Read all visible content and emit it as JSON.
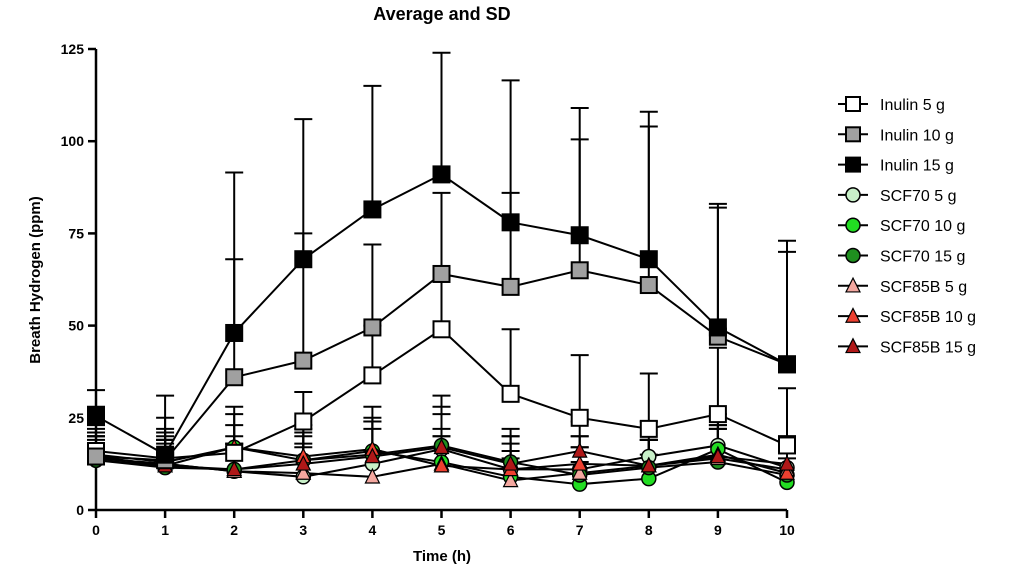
{
  "chart_data": {
    "type": "line",
    "title": "Average and SD",
    "xlabel": "Time (h)",
    "ylabel": "Breath Hydrogen (ppm)",
    "xlim": [
      0,
      10
    ],
    "ylim": [
      0,
      125
    ],
    "x_ticks": [
      0,
      1,
      2,
      3,
      4,
      5,
      6,
      7,
      8,
      9,
      10
    ],
    "y_ticks": [
      0,
      25,
      50,
      75,
      100,
      125
    ],
    "grid": false,
    "legend_position": "right",
    "x": [
      0,
      1,
      2,
      3,
      4,
      5,
      6,
      7,
      8,
      9,
      10
    ],
    "series": [
      {
        "name": "Inulin 5 g",
        "marker": "square",
        "fill": "#ffffff",
        "values": [
          16,
          14,
          15.5,
          24,
          36.5,
          49,
          31.5,
          25,
          22,
          26,
          17.5
        ],
        "sd_upper": [
          23,
          22,
          23,
          32,
          50,
          64,
          49,
          42,
          37,
          44,
          33
        ]
      },
      {
        "name": "Inulin 10 g",
        "marker": "square",
        "fill": "#a0a0a0",
        "values": [
          14.5,
          13.5,
          36,
          40.5,
          49.5,
          64,
          60.5,
          65,
          61,
          47,
          39.5
        ],
        "sd_upper": [
          28,
          25,
          68,
          75,
          72,
          86,
          86,
          100.5,
          104,
          82,
          70
        ]
      },
      {
        "name": "Inulin 15 g",
        "marker": "square",
        "fill": "#000000",
        "values": [
          25.5,
          15,
          48,
          68,
          81.5,
          91,
          78,
          74.5,
          68,
          49.5,
          39.5
        ],
        "sd_upper": [
          32.5,
          31,
          91.5,
          106,
          115,
          124,
          116.5,
          109,
          108,
          83,
          73
        ]
      },
      {
        "name": "SCF70 5 g",
        "marker": "circle",
        "fill": "#c8f0c8",
        "values": [
          14,
          12.5,
          10.5,
          9,
          12.5,
          16.5,
          11,
          11,
          14.5,
          17.5,
          11.5
        ],
        "sd_upper": [
          20,
          21,
          20,
          18,
          24,
          31,
          20,
          20,
          24,
          26,
          20
        ]
      },
      {
        "name": "SCF70 10 g",
        "marker": "circle",
        "fill": "#22dd22",
        "values": [
          13.5,
          12,
          17,
          13.5,
          16,
          13,
          9,
          7,
          8.5,
          16.5,
          7.5
        ],
        "sd_upper": [
          19,
          19,
          28,
          22,
          28,
          22,
          16,
          13,
          15,
          25,
          14
        ]
      },
      {
        "name": "SCF70 15 g",
        "marker": "circle",
        "fill": "#1f8f1f",
        "values": [
          13.5,
          11.5,
          11,
          13.5,
          15,
          17.5,
          13,
          9.5,
          11.5,
          13,
          9.5
        ],
        "sd_upper": [
          20,
          18,
          18,
          21,
          24,
          28,
          22,
          17,
          19,
          23,
          17
        ]
      },
      {
        "name": "SCF85B 5 g",
        "marker": "triangle",
        "fill": "#f4a8a0",
        "values": [
          14,
          12.5,
          10.5,
          10,
          9,
          12.5,
          8,
          10,
          12,
          14,
          11
        ],
        "sd_upper": [
          20,
          19,
          17,
          17,
          16,
          20,
          14,
          17,
          19,
          22,
          18
        ]
      },
      {
        "name": "SCF85B 10 g",
        "marker": "triangle",
        "fill": "#ee4030",
        "values": [
          15,
          13,
          17,
          14.5,
          16.5,
          12,
          11,
          12.5,
          12,
          15,
          10
        ],
        "sd_upper": [
          22,
          20,
          26,
          23,
          25,
          20,
          18,
          20,
          19,
          23,
          17
        ]
      },
      {
        "name": "SCF85B 15 g",
        "marker": "triangle",
        "fill": "#b01818",
        "values": [
          14.5,
          12,
          11,
          12.5,
          14.5,
          17,
          12.5,
          16,
          12,
          14.5,
          12.5
        ],
        "sd_upper": [
          21,
          19,
          18,
          20,
          22,
          26,
          20,
          24,
          19,
          22,
          20
        ]
      }
    ]
  }
}
